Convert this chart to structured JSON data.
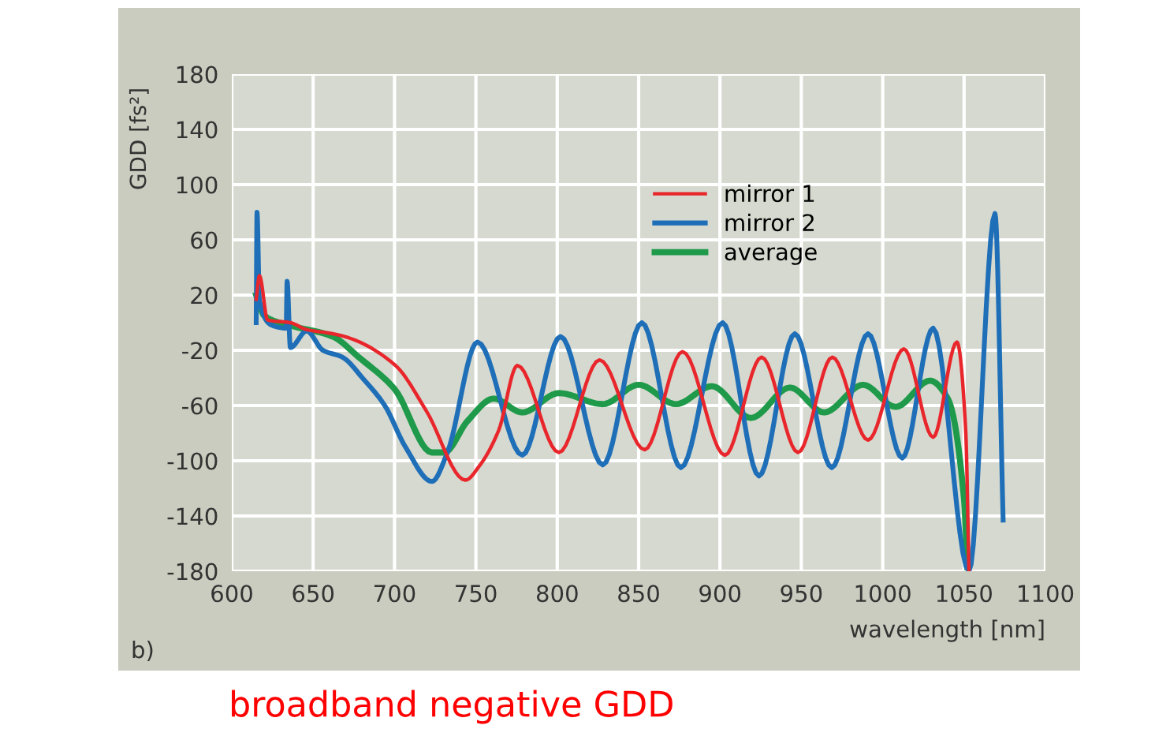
{
  "chart_data": {
    "type": "line",
    "ylabel": "GDD [fs²]",
    "xlabel": "wavelength [nm]",
    "xlim": [
      600,
      1100
    ],
    "xticks": [
      600,
      650,
      700,
      750,
      800,
      850,
      900,
      950,
      1000,
      1050,
      1100
    ],
    "ylim": [
      -180,
      180
    ],
    "yticks": [
      -180,
      -140,
      -100,
      -60,
      -20,
      20,
      60,
      100,
      140,
      180
    ],
    "grid": true,
    "legend": "top",
    "line_style": "solid",
    "marker": "none",
    "annotations": [
      "b)",
      "broadband negative GDD"
    ],
    "series": [
      {
        "name": "mirror 1",
        "color": "#e8262b",
        "x": [
          615,
          617,
          622,
          636,
          646,
          662,
          672,
          700.6,
          719.6,
          743.6,
          752,
          764,
          775.5,
          801,
          826,
          853.7,
          877,
          903,
          925.6,
          948,
          969,
          991,
          1013,
          1031,
          1045.6,
          1051,
          1053
        ],
        "values": [
          17,
          34,
          2,
          0,
          -5,
          -8,
          -11,
          -31,
          -64,
          -114,
          -104,
          -78,
          -31,
          -94,
          -27,
          -92,
          -21,
          -96,
          -25,
          -94,
          -25,
          -85,
          -19,
          -83,
          -14,
          -78,
          -180
        ]
      },
      {
        "name": "mirror 2",
        "color": "#1f6fb8",
        "x": [
          615,
          615.5,
          617,
          625,
          633.4,
          634,
          636,
          646,
          656,
          668,
          681,
          694,
          706.7,
          723,
          732.5,
          751,
          778.5,
          802,
          828,
          852,
          876,
          901.6,
          924,
          946,
          968.7,
          991,
          1012,
          1031,
          1053,
          1069,
          1074
        ],
        "values": [
          0,
          80,
          16,
          -2,
          -4,
          30,
          -18,
          -6,
          -20,
          -25,
          -41,
          -60,
          -90,
          -115,
          -94,
          -14,
          -96,
          -10,
          -103,
          0,
          -105,
          0,
          -111,
          -8,
          -105,
          -8,
          -98,
          -4,
          -180,
          79,
          -143
        ]
      },
      {
        "name": "average",
        "color": "#1e9a4a",
        "x": [
          615,
          620,
          636,
          662,
          678,
          700,
          723,
          730.5,
          745,
          761,
          778.5,
          801,
          828,
          850,
          873,
          895,
          919,
          943,
          964,
          988,
          1008,
          1029,
          1040,
          1050,
          1052
        ],
        "values": [
          20,
          5,
          -2,
          -10,
          -25,
          -48,
          -94,
          -94,
          -71,
          -55,
          -65,
          -51,
          -59,
          -45,
          -59,
          -46,
          -69,
          -47,
          -65,
          -45,
          -61,
          -42,
          -55,
          -128,
          -177
        ]
      }
    ]
  }
}
